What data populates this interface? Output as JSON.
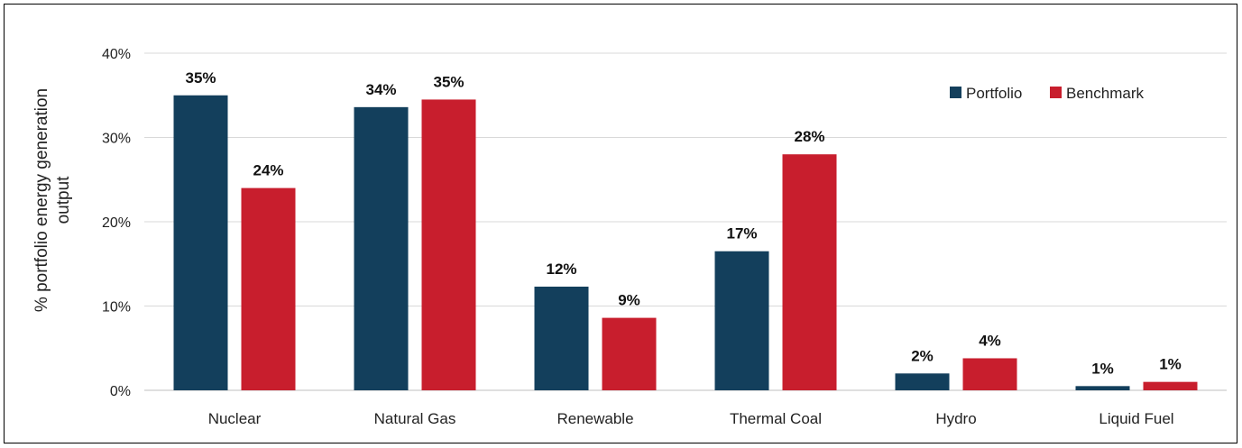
{
  "chart_data": {
    "type": "bar",
    "categories": [
      "Nuclear",
      "Natural Gas",
      "Renewable",
      "Thermal Coal",
      "Hydro",
      "Liquid Fuel"
    ],
    "series": [
      {
        "name": "Portfolio",
        "color": "#133f5c",
        "values": [
          35.0,
          33.6,
          12.3,
          16.5,
          2.0,
          0.5
        ],
        "labels": [
          "35%",
          "34%",
          "12%",
          "17%",
          "2%",
          "1%"
        ]
      },
      {
        "name": "Benchmark",
        "color": "#c81e2d",
        "values": [
          24.0,
          34.5,
          8.6,
          28.0,
          3.8,
          1.0
        ],
        "labels": [
          "24%",
          "35%",
          "9%",
          "28%",
          "4%",
          "1%"
        ]
      }
    ],
    "title": "",
    "xlabel": "",
    "ylabel": "% portfolio energy generation output",
    "ylabel_lines": [
      "% portfolio energy generation",
      "output"
    ],
    "ylim": [
      0,
      40
    ],
    "yticks": [
      0,
      10,
      20,
      30,
      40
    ],
    "ytick_labels": [
      "0%",
      "10%",
      "20%",
      "30%",
      "40%"
    ],
    "grid": true,
    "legend": "top-right"
  }
}
